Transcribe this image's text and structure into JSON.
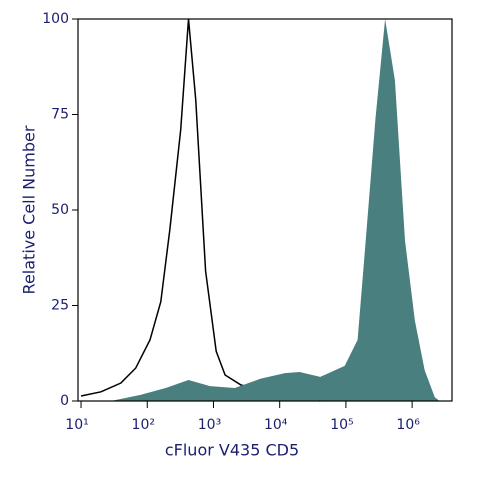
{
  "chart_data": {
    "type": "histogram-overlay",
    "xlabel": "cFluor V435 CD5",
    "ylabel": "Relative Cell Number",
    "xscale": "log",
    "xlim": [
      9,
      4000000
    ],
    "ylim": [
      0,
      100
    ],
    "xticks": [
      {
        "value": 10,
        "label": "10¹"
      },
      {
        "value": 100,
        "label": "10²"
      },
      {
        "value": 1000,
        "label": "10³"
      },
      {
        "value": 10000,
        "label": "10⁴"
      },
      {
        "value": 100000,
        "label": "10⁵"
      },
      {
        "value": 1000000,
        "label": "10⁶"
      }
    ],
    "yticks": [
      0,
      25,
      50,
      75,
      100
    ],
    "series": [
      {
        "color": "#000000",
        "filled": false,
        "x": [
          10,
          20,
          40,
          67,
          110,
          160,
          220,
          320,
          420,
          540,
          760,
          1100,
          1500,
          2600,
          5100,
          10000,
          20000,
          41000
        ],
        "values": [
          1.3,
          2.4,
          4.7,
          8.6,
          16,
          26,
          45,
          71,
          100,
          79,
          34,
          13,
          6.8,
          4.2,
          2.9,
          2.1,
          1,
          0
        ]
      },
      {
        "color": "#4a7f7f",
        "filled": true,
        "x": [
          28,
          79,
          190,
          420,
          890,
          2100,
          5100,
          12000,
          20000,
          41000,
          96000,
          150000,
          195000,
          280000,
          390000,
          550000,
          780000,
          1100000,
          1550000,
          2200000,
          2600000
        ],
        "values": [
          0,
          1.6,
          3.4,
          5.5,
          3.9,
          3.4,
          5.8,
          7.3,
          7.6,
          6.3,
          9.2,
          16,
          40,
          74,
          100,
          84,
          42,
          21,
          8,
          1,
          0
        ]
      }
    ]
  }
}
